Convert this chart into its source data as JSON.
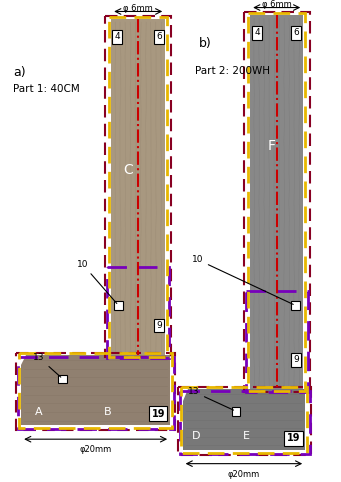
{
  "bg_color": "#ffffff",
  "fig_width": 3.41,
  "fig_height": 4.82,
  "dpi": 100,
  "label_a": "a)",
  "label_b": "b)",
  "part1_label": "Part 1: 40CM",
  "part2_label": "Part 2: 200WH",
  "phi6_label": "φ 6mm",
  "phi20_label": "φ20mm",
  "gray_shaft_left": "#a89880",
  "gray_base_left": "#908070",
  "gray_shaft_right": "#888888",
  "gray_base_right": "#787878",
  "color_yellow": "#e8b800",
  "color_red": "#cc0000",
  "color_purple": "#7700bb",
  "color_maroon": "#880022",
  "white": "#ffffff",
  "black": "#000000"
}
